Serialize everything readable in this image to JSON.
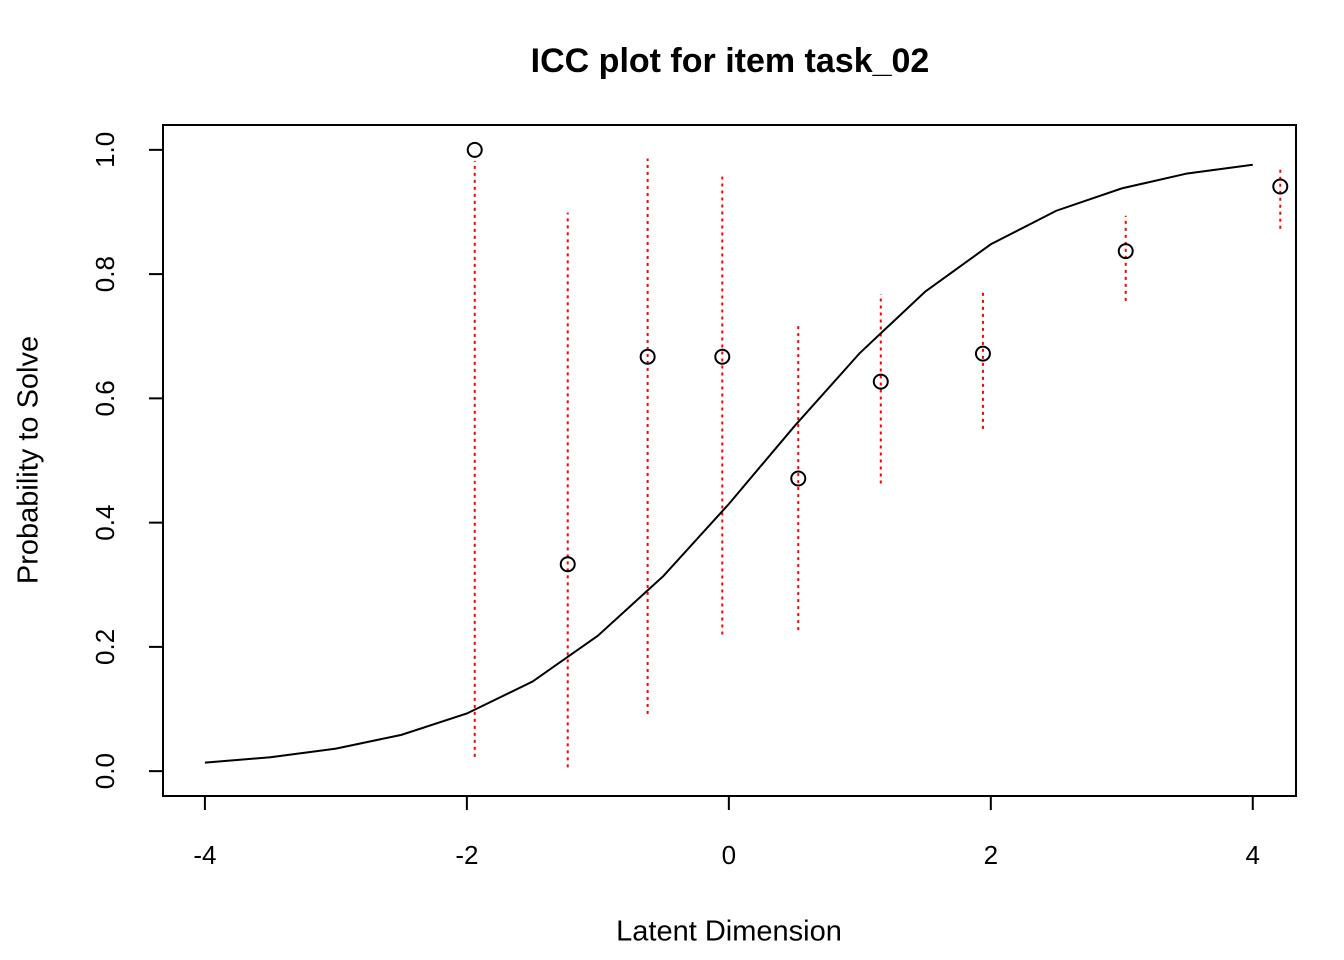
{
  "chart_data": {
    "type": "scatter",
    "title": "ICC plot for item  task_02",
    "x_label": "Latent Dimension",
    "y_label": "Probability to Solve",
    "xlim": [
      -4.32,
      4.33
    ],
    "ylim": [
      -0.04,
      1.04
    ],
    "xticks": [
      -4,
      -2,
      0,
      2,
      4
    ],
    "yticks": [
      {
        "value": 0,
        "label": "0.0"
      },
      0.2,
      0.4,
      0.6,
      0.8,
      {
        "value": 1,
        "label": "1.0"
      }
    ],
    "series": [
      {
        "type": "scatter",
        "color": "#000000",
        "error_color": "#ff0000",
        "x": [
          -1.94,
          -1.23,
          -0.62,
          -0.05,
          0.53,
          1.16,
          1.94,
          3.03,
          4.21
        ],
        "values": [
          1.0,
          0.333,
          0.667,
          0.667,
          0.471,
          0.627,
          0.672,
          0.837,
          0.941
        ],
        "lower": [
          0.023,
          0.006,
          0.092,
          0.22,
          0.227,
          0.463,
          0.551,
          0.757,
          0.873
        ],
        "upper": [
          0.982,
          0.899,
          0.986,
          0.957,
          0.722,
          0.768,
          0.775,
          0.894,
          0.969
        ]
      },
      {
        "type": "line",
        "color": "#000000",
        "x": [
          -4,
          -3.5,
          -3,
          -2.5,
          -2,
          -1.5,
          -1,
          -0.5,
          0,
          0.5,
          1,
          1.5,
          2,
          2.5,
          3,
          3.5,
          4
        ],
        "values": [
          0.0137,
          0.0223,
          0.0362,
          0.0584,
          0.0928,
          0.144,
          0.218,
          0.314,
          0.43,
          0.555,
          0.673,
          0.772,
          0.848,
          0.902,
          0.938,
          0.962,
          0.976
        ]
      }
    ]
  }
}
